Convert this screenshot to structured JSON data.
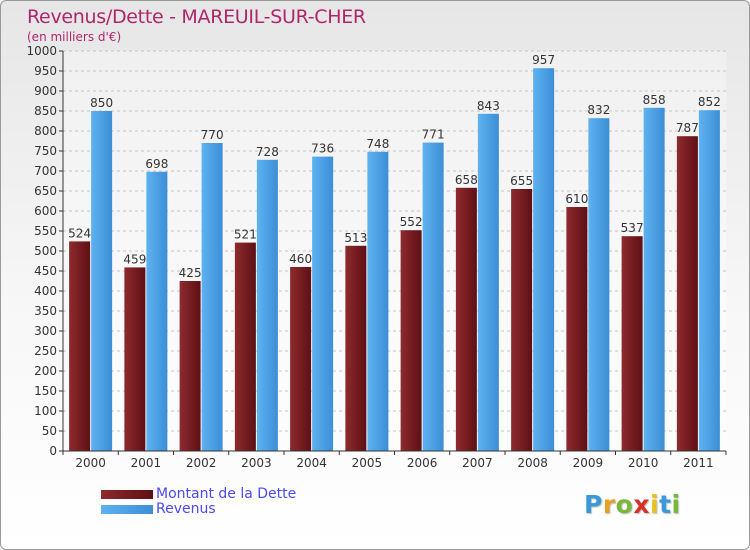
{
  "header": {
    "title": "Revenus/Dette - MAREUIL-SUR-CHER",
    "subtitle": "(en milliers d'€)"
  },
  "legend": {
    "dette": "Montant de la Dette",
    "revenus": "Revenus"
  },
  "logo": {
    "letters": [
      "P",
      "r",
      "o",
      "x",
      "i",
      "t",
      "i"
    ],
    "colors": [
      "#3a9ad9",
      "#e8a020",
      "#7ab83a",
      "#d8302a",
      "#e8c020",
      "#3a9ad9",
      "#7ab83a"
    ]
  },
  "colors": {
    "dette": "#7a1e22",
    "revenus": "#4ea2e4"
  },
  "chart_data": {
    "type": "bar",
    "title": "Revenus/Dette - MAREUIL-SUR-CHER",
    "subtitle": "(en milliers d'€)",
    "categories": [
      "2000",
      "2001",
      "2002",
      "2003",
      "2004",
      "2005",
      "2006",
      "2007",
      "2008",
      "2009",
      "2010",
      "2011"
    ],
    "series": [
      {
        "name": "Montant de la Dette",
        "values": [
          524,
          459,
          425,
          521,
          460,
          513,
          552,
          658,
          655,
          610,
          537,
          787
        ]
      },
      {
        "name": "Revenus",
        "values": [
          850,
          698,
          770,
          728,
          736,
          748,
          771,
          843,
          957,
          832,
          858,
          852
        ]
      }
    ],
    "yticks": [
      0,
      50,
      100,
      150,
      200,
      250,
      300,
      350,
      400,
      450,
      500,
      550,
      600,
      650,
      700,
      750,
      800,
      850,
      900,
      950,
      1000
    ],
    "ylim": [
      0,
      1000
    ],
    "grid": true,
    "legend_position": "bottom-left"
  }
}
